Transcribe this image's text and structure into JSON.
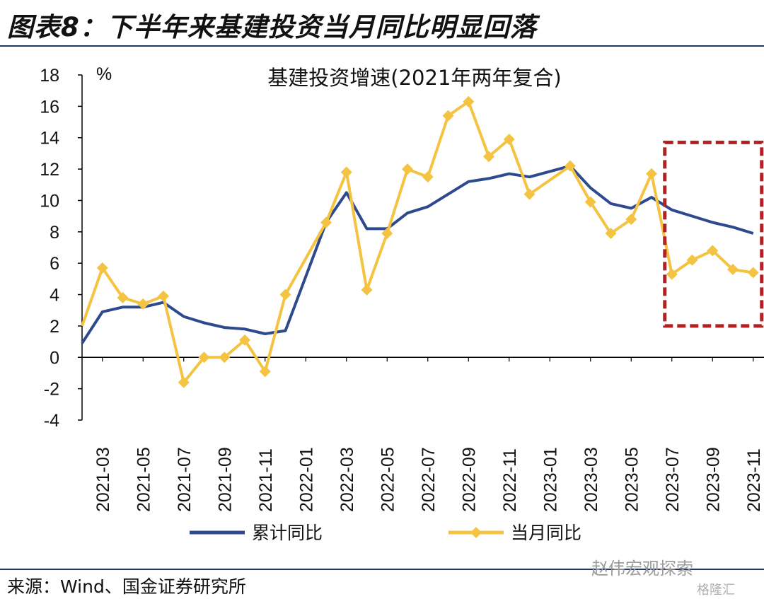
{
  "figure_title": "图表8：下半年来基建投资当月同比明显回落",
  "source": "来源：Wind、国金证券研究所",
  "watermark": "赵伟宏观探索",
  "watermark2": "格隆汇",
  "colors": {
    "cumulative": "#2e4a8f",
    "monthly": "#f5c342",
    "highlight_box": "#b22222",
    "rule": "#1f3864"
  },
  "chart_data": {
    "type": "line",
    "title": "基建投资增速(2021年两年复合)",
    "unit_label": "%",
    "ylim": [
      -4,
      18
    ],
    "yticks": [
      -4,
      -2,
      0,
      2,
      4,
      6,
      8,
      10,
      12,
      14,
      16,
      18
    ],
    "x_tick_labels": [
      "2021-03",
      "2021-05",
      "2021-07",
      "2021-09",
      "2021-11",
      "2022-01",
      "2022-03",
      "2022-05",
      "2022-07",
      "2022-09",
      "2022-11",
      "2023-01",
      "2023-03",
      "2023-05",
      "2023-07",
      "2023-09",
      "2023-11"
    ],
    "series": [
      {
        "name": "累计同比",
        "style": "line",
        "points": [
          [
            "2021-02",
            0.9
          ],
          [
            "2021-03",
            2.9
          ],
          [
            "2021-04",
            3.2
          ],
          [
            "2021-05",
            3.2
          ],
          [
            "2021-06",
            3.5
          ],
          [
            "2021-07",
            2.6
          ],
          [
            "2021-08",
            2.2
          ],
          [
            "2021-09",
            1.9
          ],
          [
            "2021-10",
            1.8
          ],
          [
            "2021-11",
            1.5
          ],
          [
            "2021-12",
            1.7
          ],
          [
            "2022-02",
            8.6
          ],
          [
            "2022-03",
            10.5
          ],
          [
            "2022-04",
            8.2
          ],
          [
            "2022-05",
            8.2
          ],
          [
            "2022-06",
            9.2
          ],
          [
            "2022-07",
            9.6
          ],
          [
            "2022-08",
            10.4
          ],
          [
            "2022-09",
            11.2
          ],
          [
            "2022-10",
            11.4
          ],
          [
            "2022-11",
            11.7
          ],
          [
            "2022-12",
            11.5
          ],
          [
            "2023-02",
            12.2
          ],
          [
            "2023-03",
            10.8
          ],
          [
            "2023-04",
            9.8
          ],
          [
            "2023-05",
            9.5
          ],
          [
            "2023-06",
            10.2
          ],
          [
            "2023-07",
            9.4
          ],
          [
            "2023-08",
            9.0
          ],
          [
            "2023-09",
            8.6
          ],
          [
            "2023-10",
            8.3
          ],
          [
            "2023-11",
            7.9
          ]
        ]
      },
      {
        "name": "当月同比",
        "style": "line-diamond",
        "points": [
          [
            "2021-02",
            2.0
          ],
          [
            "2021-03",
            5.7
          ],
          [
            "2021-04",
            3.8
          ],
          [
            "2021-05",
            3.4
          ],
          [
            "2021-06",
            3.9
          ],
          [
            "2021-07",
            -1.6
          ],
          [
            "2021-08",
            0.0
          ],
          [
            "2021-09",
            0.0
          ],
          [
            "2021-10",
            1.1
          ],
          [
            "2021-11",
            -0.9
          ],
          [
            "2021-12",
            4.0
          ],
          [
            "2022-02",
            8.6
          ],
          [
            "2022-03",
            11.8
          ],
          [
            "2022-04",
            4.3
          ],
          [
            "2022-05",
            7.9
          ],
          [
            "2022-06",
            12.0
          ],
          [
            "2022-07",
            11.5
          ],
          [
            "2022-08",
            15.4
          ],
          [
            "2022-09",
            16.3
          ],
          [
            "2022-10",
            12.8
          ],
          [
            "2022-11",
            13.9
          ],
          [
            "2022-12",
            10.4
          ],
          [
            "2023-02",
            12.2
          ],
          [
            "2023-03",
            9.9
          ],
          [
            "2023-04",
            7.9
          ],
          [
            "2023-05",
            8.8
          ],
          [
            "2023-06",
            11.7
          ],
          [
            "2023-07",
            5.3
          ],
          [
            "2023-08",
            6.2
          ],
          [
            "2023-09",
            6.8
          ],
          [
            "2023-10",
            5.6
          ],
          [
            "2023-11",
            5.4
          ]
        ]
      }
    ],
    "highlight": {
      "x_from": "2023-07",
      "x_to": "2023-11",
      "y_from": 2,
      "y_to": 13.7
    },
    "legend": [
      "累计同比",
      "当月同比"
    ]
  }
}
